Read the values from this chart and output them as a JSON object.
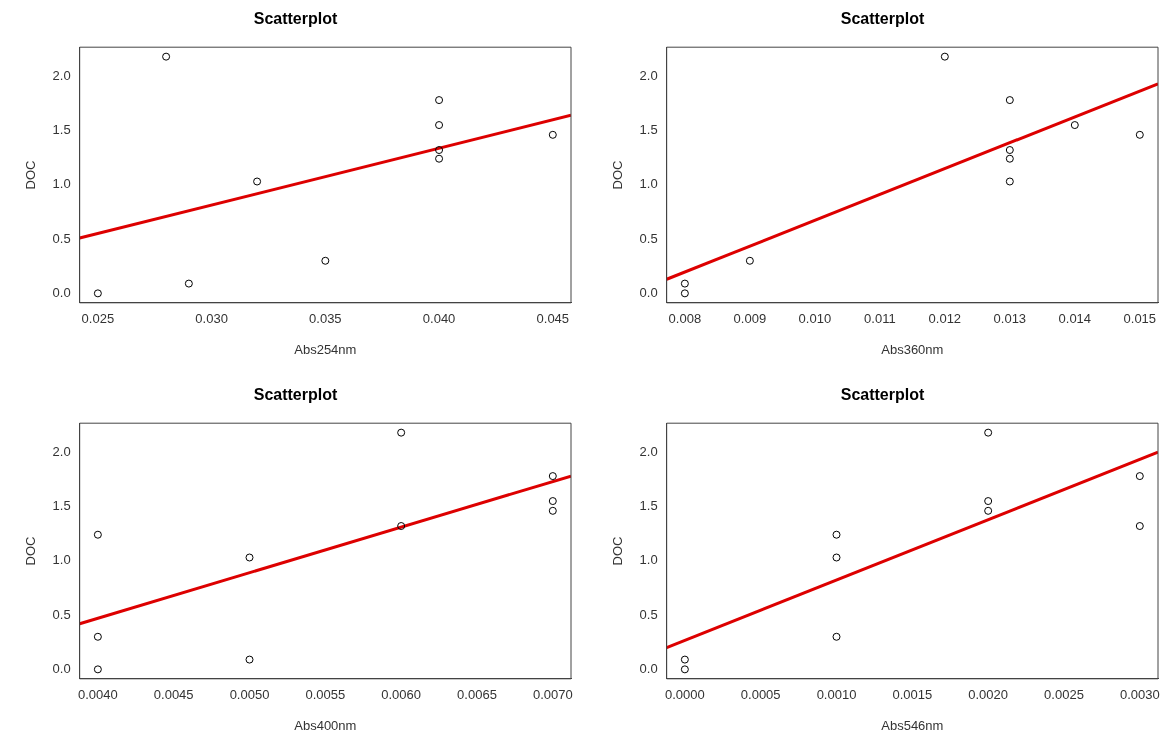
{
  "chart_data": [
    {
      "type": "scatter",
      "title": "Scatterplot",
      "xlabel": "Abs254nm",
      "ylabel": "DOC",
      "xlim": [
        0.0242,
        0.0458
      ],
      "xticks": [
        {
          "value": 0.025,
          "label": "0.025"
        },
        {
          "value": 0.03,
          "label": "0.030"
        },
        {
          "value": 0.035,
          "label": "0.035"
        },
        {
          "value": 0.04,
          "label": "0.040"
        },
        {
          "value": 0.045,
          "label": "0.045"
        }
      ],
      "ylim": [
        -0.087,
        2.267
      ],
      "yticks": [
        {
          "value": 0,
          "label": "0.0"
        },
        {
          "value": 0.5,
          "label": "0.5"
        },
        {
          "value": 1,
          "label": "1.0"
        },
        {
          "value": 1.5,
          "label": "1.5"
        },
        {
          "value": 2,
          "label": "2.0"
        }
      ],
      "grid": false,
      "legend": false,
      "marker": "circle",
      "series": [
        {
          "type": "scatter",
          "color": "#000000",
          "x": [
            0.025,
            0.028,
            0.029,
            0.032,
            0.035,
            0.04,
            0.04,
            0.04,
            0.04,
            0.045
          ],
          "values": [
            0,
            2.18,
            0.09,
            1.03,
            0.3,
            1.78,
            1.55,
            1.32,
            1.24,
            1.46
          ]
        },
        {
          "type": "line",
          "color": "#dd0000",
          "marker": "none",
          "x": [
            0.0242,
            0.0458
          ],
          "values": [
            0.51,
            1.64
          ]
        }
      ]
    },
    {
      "type": "scatter",
      "title": "Scatterplot",
      "xlabel": "Abs360nm",
      "ylabel": "DOC",
      "xlim": [
        0.00772,
        0.01528
      ],
      "xticks": [
        {
          "value": 0.008,
          "label": "0.008"
        },
        {
          "value": 0.009,
          "label": "0.009"
        },
        {
          "value": 0.01,
          "label": "0.010"
        },
        {
          "value": 0.011,
          "label": "0.011"
        },
        {
          "value": 0.012,
          "label": "0.012"
        },
        {
          "value": 0.013,
          "label": "0.013"
        },
        {
          "value": 0.014,
          "label": "0.014"
        },
        {
          "value": 0.015,
          "label": "0.015"
        }
      ],
      "ylim": [
        -0.087,
        2.267
      ],
      "yticks": [
        {
          "value": 0,
          "label": "0.0"
        },
        {
          "value": 0.5,
          "label": "0.5"
        },
        {
          "value": 1,
          "label": "1.0"
        },
        {
          "value": 1.5,
          "label": "1.5"
        },
        {
          "value": 2,
          "label": "2.0"
        }
      ],
      "grid": false,
      "legend": false,
      "marker": "circle",
      "series": [
        {
          "type": "scatter",
          "color": "#000000",
          "x": [
            0.008,
            0.008,
            0.009,
            0.012,
            0.013,
            0.013,
            0.013,
            0.013,
            0.014,
            0.015
          ],
          "values": [
            0.09,
            0,
            0.3,
            2.18,
            1.78,
            1.32,
            1.24,
            1.03,
            1.55,
            1.46
          ]
        },
        {
          "type": "line",
          "color": "#dd0000",
          "marker": "none",
          "x": [
            0.00772,
            0.01528
          ],
          "values": [
            0.13,
            1.93
          ]
        }
      ]
    },
    {
      "type": "scatter",
      "title": "Scatterplot",
      "xlabel": "Abs400nm",
      "ylabel": "DOC",
      "xlim": [
        0.00388,
        0.00712
      ],
      "xticks": [
        {
          "value": 0.004,
          "label": "0.0040"
        },
        {
          "value": 0.0045,
          "label": "0.0045"
        },
        {
          "value": 0.005,
          "label": "0.0050"
        },
        {
          "value": 0.0055,
          "label": "0.0055"
        },
        {
          "value": 0.006,
          "label": "0.0060"
        },
        {
          "value": 0.0065,
          "label": "0.0065"
        },
        {
          "value": 0.007,
          "label": "0.0070"
        }
      ],
      "ylim": [
        -0.087,
        2.267
      ],
      "yticks": [
        {
          "value": 0,
          "label": "0.0"
        },
        {
          "value": 0.5,
          "label": "0.5"
        },
        {
          "value": 1,
          "label": "1.0"
        },
        {
          "value": 1.5,
          "label": "1.5"
        },
        {
          "value": 2,
          "label": "2.0"
        }
      ],
      "grid": false,
      "legend": false,
      "marker": "circle",
      "series": [
        {
          "type": "scatter",
          "color": "#000000",
          "x": [
            0.004,
            0.004,
            0.004,
            0.005,
            0.005,
            0.006,
            0.006,
            0.007,
            0.007,
            0.007
          ],
          "values": [
            1.24,
            0.3,
            0,
            1.03,
            0.09,
            2.18,
            1.32,
            1.78,
            1.55,
            1.46
          ]
        },
        {
          "type": "line",
          "color": "#dd0000",
          "marker": "none",
          "x": [
            0.00388,
            0.00712
          ],
          "values": [
            0.42,
            1.78
          ]
        }
      ]
    },
    {
      "type": "scatter",
      "title": "Scatterplot",
      "xlabel": "Abs546nm",
      "ylabel": "DOC",
      "xlim": [
        -0.00012,
        0.00312
      ],
      "xticks": [
        {
          "value": 0,
          "label": "0.0000"
        },
        {
          "value": 0.0005,
          "label": "0.0005"
        },
        {
          "value": 0.001,
          "label": "0.0010"
        },
        {
          "value": 0.0015,
          "label": "0.0015"
        },
        {
          "value": 0.002,
          "label": "0.0020"
        },
        {
          "value": 0.0025,
          "label": "0.0025"
        },
        {
          "value": 0.003,
          "label": "0.0030"
        }
      ],
      "ylim": [
        -0.087,
        2.267
      ],
      "yticks": [
        {
          "value": 0,
          "label": "0.0"
        },
        {
          "value": 0.5,
          "label": "0.5"
        },
        {
          "value": 1,
          "label": "1.0"
        },
        {
          "value": 1.5,
          "label": "1.5"
        },
        {
          "value": 2,
          "label": "2.0"
        }
      ],
      "grid": false,
      "legend": false,
      "marker": "circle",
      "series": [
        {
          "type": "scatter",
          "color": "#000000",
          "x": [
            0,
            0,
            0.001,
            0.001,
            0.001,
            0.002,
            0.002,
            0.002,
            0.003,
            0.003
          ],
          "values": [
            0.09,
            0,
            1.24,
            1.03,
            0.3,
            2.18,
            1.55,
            1.46,
            1.78,
            1.32
          ]
        },
        {
          "type": "line",
          "color": "#dd0000",
          "marker": "none",
          "x": [
            -0.00012,
            0.00312
          ],
          "values": [
            0.2,
            2.0
          ]
        }
      ]
    }
  ]
}
